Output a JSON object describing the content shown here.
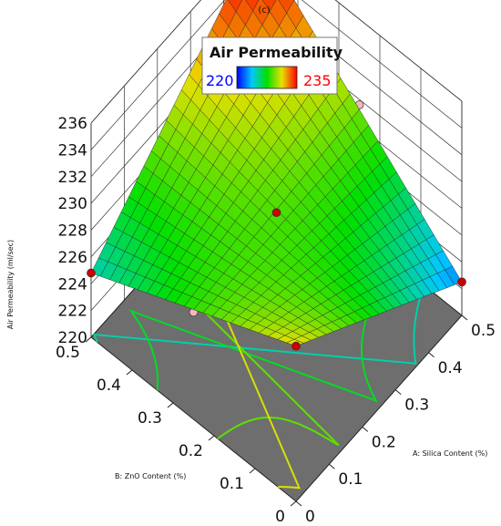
{
  "chart_data": {
    "type": "surface3d",
    "panel_label": "(c)",
    "legend": {
      "title": "Air Permeability",
      "min_label": "220",
      "max_label": "235"
    },
    "x_axis": {
      "label": "A: Silica Content (%)",
      "ticks": [
        "0",
        "0.1",
        "0.2",
        "0.3",
        "0.4",
        "0.5"
      ],
      "range": [
        0,
        0.5
      ]
    },
    "y_axis": {
      "label": "B: ZnO Content (%)",
      "ticks": [
        "0",
        "0.1",
        "0.2",
        "0.3",
        "0.4",
        "0.5"
      ],
      "range": [
        0,
        0.5
      ]
    },
    "z_axis": {
      "label": "Air Permeability (ml/sec)",
      "ticks": [
        "220",
        "222",
        "224",
        "226",
        "228",
        "230",
        "232",
        "234",
        "236"
      ],
      "range": [
        220,
        236
      ]
    },
    "surface": {
      "grid_x": [
        0,
        0.5
      ],
      "grid_y": [
        0,
        0.5
      ],
      "z": [
        [
          231.6,
          222.5
        ],
        [
          224.8,
          236.0
        ]
      ]
    },
    "design_points": [
      {
        "x": 0,
        "y": 0,
        "z": 231.6,
        "side": "above"
      },
      {
        "x": 0.5,
        "y": 0,
        "z": 222.5,
        "side": "above"
      },
      {
        "x": 0,
        "y": 0.5,
        "z": 224.8,
        "side": "above"
      },
      {
        "x": 0.5,
        "y": 0.5,
        "z": 236.0,
        "side": "above"
      },
      {
        "x": 0.25,
        "y": 0.25,
        "z": 228.5,
        "side": "above"
      },
      {
        "x": 0.5,
        "y": 0.25,
        "z": 229.6,
        "side": "below"
      },
      {
        "x": 0.25,
        "y": 0.5,
        "z": 229.5,
        "side": "below"
      },
      {
        "x": 0,
        "y": 0.25,
        "z": 228.0,
        "side": "below"
      },
      {
        "x": 0.25,
        "y": 0,
        "z": 227.4,
        "side": "below"
      }
    ],
    "floor_contours": [
      225,
      227,
      229,
      231,
      233
    ],
    "colors": {
      "floor": "#6e6e6e",
      "grid": "#333333",
      "point_above": "#cc0000",
      "point_below": "#f2b8c0",
      "legend_min": "#0000ff",
      "legend_max": "#ff0000"
    }
  }
}
